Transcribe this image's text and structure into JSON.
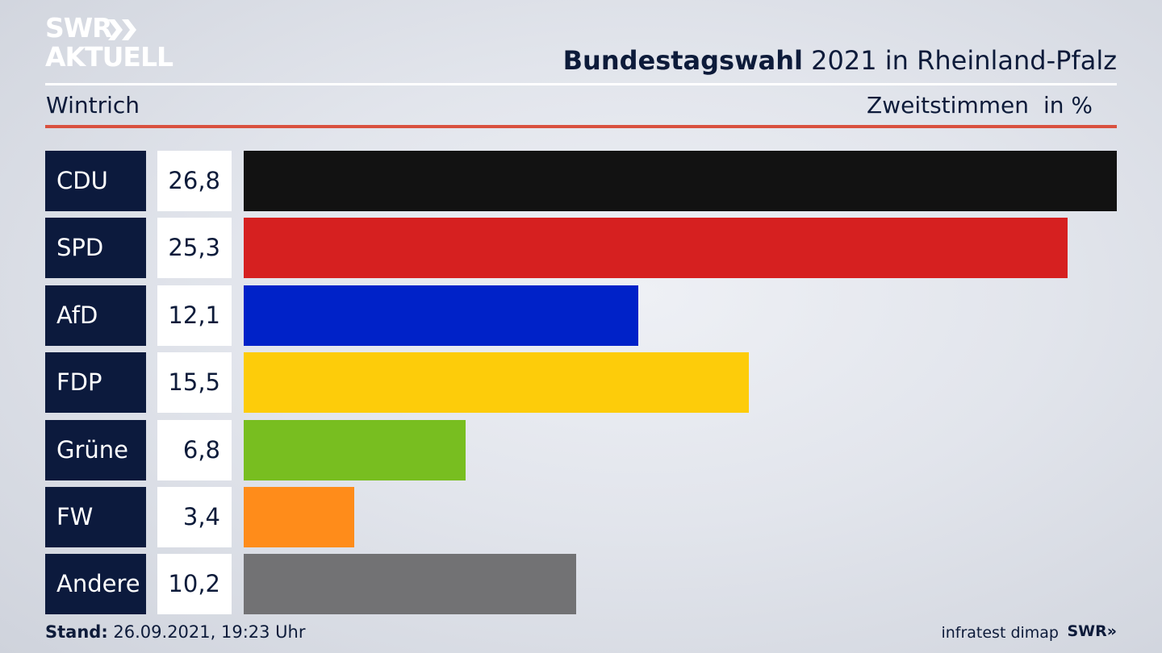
{
  "brand": {
    "line1": "SWR",
    "line2": "AKTUELL"
  },
  "header": {
    "title_bold": "Bundestagswahl",
    "title_rest": " 2021 in Rheinland-Pfalz",
    "location": "Wintrich",
    "measure": "Zweitstimmen",
    "unit": "in %"
  },
  "chart_data": {
    "type": "bar",
    "orientation": "horizontal",
    "categories": [
      "CDU",
      "SPD",
      "AfD",
      "FDP",
      "Grüne",
      "FW",
      "Andere"
    ],
    "values": [
      26.8,
      25.3,
      12.1,
      15.5,
      6.8,
      3.4,
      10.2
    ],
    "value_labels": [
      "26,8",
      "25,3",
      "12,1",
      "15,5",
      "6,8",
      "3,4",
      "10,2"
    ],
    "colors": [
      "#121212",
      "#d62020",
      "#0022c8",
      "#fdcc0a",
      "#78be20",
      "#ff8c1a",
      "#727274"
    ],
    "title": "Bundestagswahl 2021 in Rheinland-Pfalz",
    "subtitle": "Wintrich",
    "xlabel": "Zweitstimmen",
    "ylabel": "",
    "unit": "in %",
    "xlim": [
      0,
      26.8
    ],
    "grid": false,
    "legend": "none"
  },
  "footer": {
    "stand_label": "Stand:",
    "stand_value": " 26.09.2021, 19:23 Uhr",
    "source": "infratest dimap",
    "logo": "SWR»"
  }
}
